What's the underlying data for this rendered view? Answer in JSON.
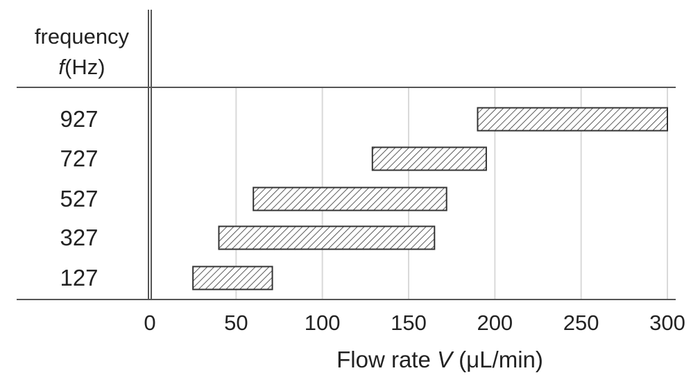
{
  "chart_data": {
    "type": "bar",
    "orientation": "horizontal-range",
    "y_header": {
      "line1": "frequency",
      "line2_italic": "f",
      "line2_rest": "(Hz)"
    },
    "xlabel": {
      "prefix": "Flow rate ",
      "italic": "V",
      "suffix": " (μL/min)"
    },
    "xlim": [
      0,
      300
    ],
    "xticks": [
      0,
      50,
      100,
      150,
      200,
      250,
      300
    ],
    "xtick_labels": [
      "0",
      "50",
      "100",
      "150",
      "200",
      "250",
      "300"
    ],
    "grid": "vertical",
    "categories": [
      "927",
      "727",
      "527",
      "327",
      "127"
    ],
    "ranges": [
      {
        "category": "927",
        "start": 190,
        "end": 300
      },
      {
        "category": "727",
        "start": 129,
        "end": 195
      },
      {
        "category": "527",
        "start": 60,
        "end": 172
      },
      {
        "category": "327",
        "start": 40,
        "end": 165
      },
      {
        "category": "127",
        "start": 25,
        "end": 71
      }
    ],
    "colors": {
      "grid": "#d9d9d9",
      "axis": "#555555",
      "bar_fill": "#ffffff",
      "bar_stroke": "#333333",
      "hatch": "#333333",
      "text": "#222222"
    }
  }
}
